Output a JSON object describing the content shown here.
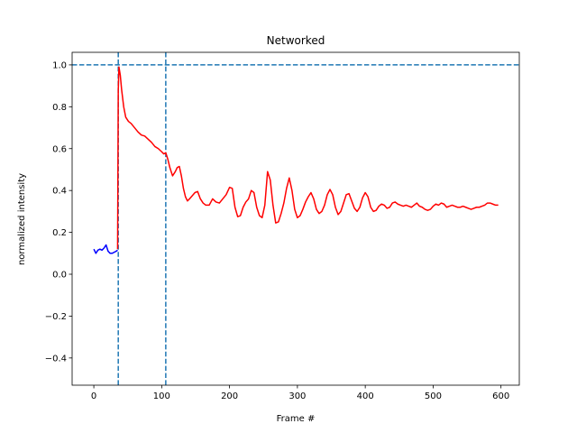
{
  "chart_data": {
    "type": "line",
    "title": "Networked",
    "xlabel": "Frame #",
    "ylabel": "normalized intensity",
    "xlim": [
      -32,
      627
    ],
    "ylim": [
      -0.53,
      1.06
    ],
    "xticks": [
      0,
      100,
      200,
      300,
      400,
      500,
      600
    ],
    "yticks": [
      -0.4,
      -0.2,
      0.0,
      0.2,
      0.4,
      0.6,
      0.8,
      1.0
    ],
    "xtick_labels": [
      "0",
      "100",
      "200",
      "300",
      "400",
      "500",
      "600"
    ],
    "ytick_labels": [
      "−0.4",
      "−0.2",
      "0.0",
      "0.2",
      "0.4",
      "0.6",
      "0.8",
      "1.0"
    ],
    "grid": false,
    "reference_lines": [
      {
        "orientation": "horizontal",
        "value": 1.0,
        "color": "#1f77b4",
        "style": "dashed"
      },
      {
        "orientation": "vertical",
        "value": 36,
        "color": "#1f77b4",
        "style": "dashed"
      },
      {
        "orientation": "vertical",
        "value": 106,
        "color": "#1f77b4",
        "style": "dashed"
      }
    ],
    "series": [
      {
        "color": "#0000ff",
        "x": [
          0,
          3,
          6,
          9,
          12,
          15,
          18,
          21,
          24,
          27,
          30,
          33,
          35
        ],
        "y": [
          0.12,
          0.1,
          0.115,
          0.12,
          0.115,
          0.125,
          0.14,
          0.11,
          0.1,
          0.1,
          0.105,
          0.11,
          0.115
        ]
      },
      {
        "color": "#ff0000",
        "x": [
          35,
          36,
          37,
          39,
          41,
          44,
          47,
          51,
          55,
          60,
          65,
          70,
          75,
          80,
          85,
          90,
          95,
          100,
          103,
          106,
          109,
          112,
          116,
          120,
          123,
          126,
          129,
          132,
          135,
          138,
          141,
          145,
          149,
          153,
          157,
          161,
          165,
          170,
          175,
          180,
          185,
          190,
          195,
          200,
          204,
          208,
          212,
          216,
          220,
          224,
          228,
          232,
          236,
          240,
          244,
          248,
          252,
          256,
          260,
          264,
          268,
          272,
          276,
          280,
          284,
          288,
          292,
          296,
          300,
          304,
          308,
          312,
          316,
          320,
          324,
          328,
          332,
          336,
          340,
          344,
          348,
          352,
          356,
          360,
          364,
          368,
          372,
          376,
          380,
          384,
          388,
          392,
          396,
          400,
          404,
          408,
          412,
          416,
          420,
          424,
          428,
          432,
          436,
          440,
          444,
          448,
          452,
          456,
          460,
          464,
          468,
          472,
          476,
          480,
          484,
          488,
          492,
          496,
          500,
          504,
          508,
          512,
          516,
          520,
          524,
          528,
          532,
          536,
          540,
          544,
          548,
          552,
          556,
          560,
          564,
          568,
          572,
          576,
          580,
          584,
          588,
          592,
          596
        ],
        "y": [
          0.12,
          0.88,
          0.99,
          0.95,
          0.88,
          0.8,
          0.75,
          0.73,
          0.72,
          0.7,
          0.68,
          0.665,
          0.66,
          0.645,
          0.63,
          0.61,
          0.6,
          0.585,
          0.575,
          0.58,
          0.55,
          0.51,
          0.47,
          0.49,
          0.51,
          0.515,
          0.47,
          0.41,
          0.37,
          0.35,
          0.36,
          0.375,
          0.39,
          0.395,
          0.36,
          0.34,
          0.33,
          0.33,
          0.36,
          0.345,
          0.34,
          0.36,
          0.38,
          0.415,
          0.41,
          0.32,
          0.275,
          0.28,
          0.32,
          0.345,
          0.36,
          0.4,
          0.39,
          0.32,
          0.28,
          0.27,
          0.33,
          0.49,
          0.45,
          0.33,
          0.245,
          0.25,
          0.29,
          0.34,
          0.41,
          0.46,
          0.4,
          0.31,
          0.27,
          0.28,
          0.31,
          0.345,
          0.37,
          0.39,
          0.36,
          0.31,
          0.29,
          0.3,
          0.33,
          0.38,
          0.405,
          0.38,
          0.32,
          0.285,
          0.3,
          0.34,
          0.38,
          0.385,
          0.35,
          0.315,
          0.3,
          0.32,
          0.365,
          0.39,
          0.37,
          0.32,
          0.3,
          0.305,
          0.325,
          0.335,
          0.33,
          0.315,
          0.32,
          0.34,
          0.345,
          0.335,
          0.33,
          0.325,
          0.33,
          0.325,
          0.32,
          0.33,
          0.34,
          0.325,
          0.32,
          0.31,
          0.305,
          0.31,
          0.325,
          0.335,
          0.33,
          0.34,
          0.335,
          0.32,
          0.325,
          0.33,
          0.325,
          0.32,
          0.32,
          0.325,
          0.32,
          0.315,
          0.31,
          0.315,
          0.32,
          0.32,
          0.325,
          0.33,
          0.34,
          0.34,
          0.335,
          0.33,
          0.33
        ]
      }
    ]
  }
}
